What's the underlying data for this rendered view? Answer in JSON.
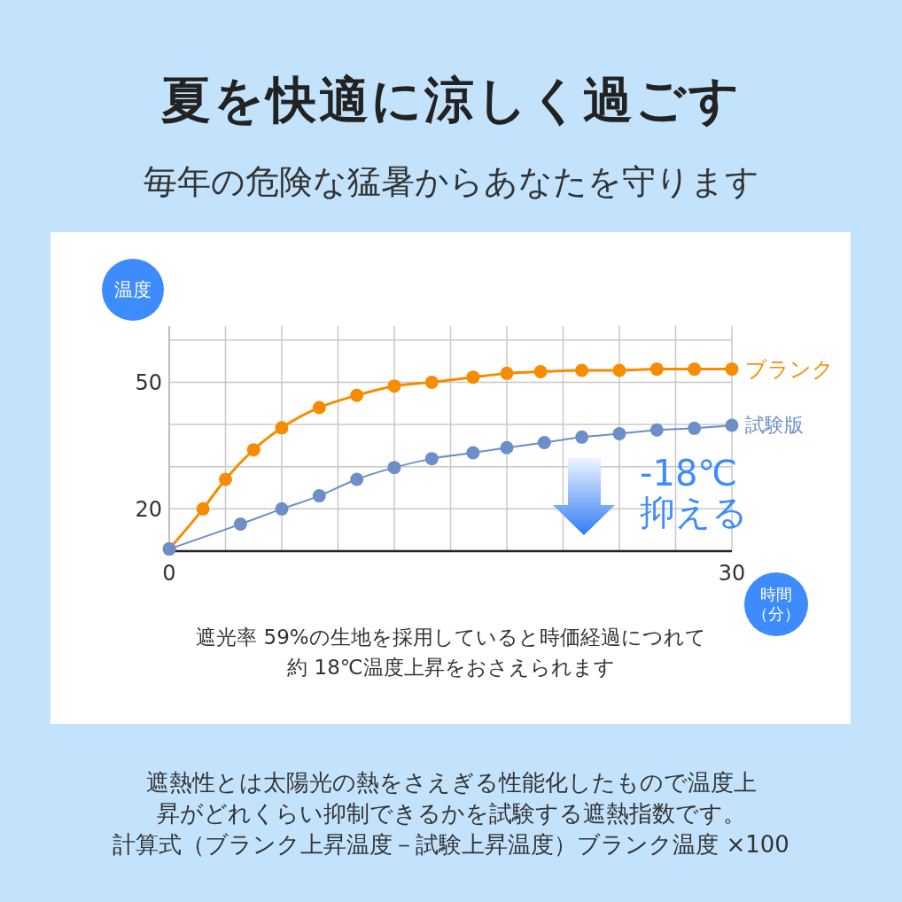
{
  "chart_data": {
    "type": "line",
    "title": "夏を快適に涼しく過ごす",
    "subtitle": "毎年の危険な猛暑からあなたを守ります",
    "xlabel": "時間（分）",
    "ylabel": "温度",
    "xlim": [
      0,
      30
    ],
    "xticks": [
      0,
      {
        "value": 3,
        "label": null
      },
      {
        "value": 6,
        "label": null
      },
      {
        "value": 9,
        "label": null
      },
      {
        "value": 12,
        "label": null
      },
      {
        "value": 15,
        "label": null
      },
      {
        "value": 18,
        "label": null
      },
      {
        "value": 21,
        "label": null
      },
      {
        "value": 24,
        "label": null
      },
      {
        "value": 27,
        "label": null
      },
      30
    ],
    "ylim": [
      10,
      63.3
    ],
    "yticks": [
      20,
      {
        "value": 30,
        "label": null
      },
      {
        "value": 40,
        "label": null
      },
      50,
      {
        "value": 60,
        "label": null
      }
    ],
    "grid": true,
    "marker": "circle",
    "line_style": "solid",
    "series": [
      {
        "name": "ブランク",
        "color": "#f78c00",
        "x": [
          0,
          1.8,
          3,
          4.5,
          6,
          8,
          10,
          12,
          14,
          16.2,
          18,
          19.8,
          22,
          24,
          26,
          28,
          30
        ],
        "values": [
          10.5,
          20,
          27,
          34,
          39.2,
          44,
          46.9,
          49.1,
          50,
          51.2,
          52.1,
          52.5,
          52.8,
          52.8,
          53.1,
          53.1,
          53.1
        ]
      },
      {
        "name": "試験版",
        "color": "#6b8fc6",
        "x": [
          0,
          3.8,
          6,
          8,
          10,
          12,
          14,
          16.2,
          18,
          20,
          22,
          24,
          26,
          28,
          30
        ],
        "values": [
          10.5,
          16.4,
          20,
          23.1,
          27,
          29.8,
          31.9,
          33.3,
          34.5,
          35.7,
          37,
          37.8,
          38.7,
          39.1,
          39.8
        ]
      }
    ],
    "annotations": [
      "-18℃抑える",
      "遮光率 59%の生地を採用していると時価経過につれて約 18℃温度上昇をおさえられます",
      "遮熱性とは太陽光の熱をさえぎる性能化したもので温度上昇がどれくらい抑制できるかを試験する遮熱指数です。",
      "計算式（ブランク上昇温度－試験上昇温度）ブランク温度 ×100"
    ]
  }
}
